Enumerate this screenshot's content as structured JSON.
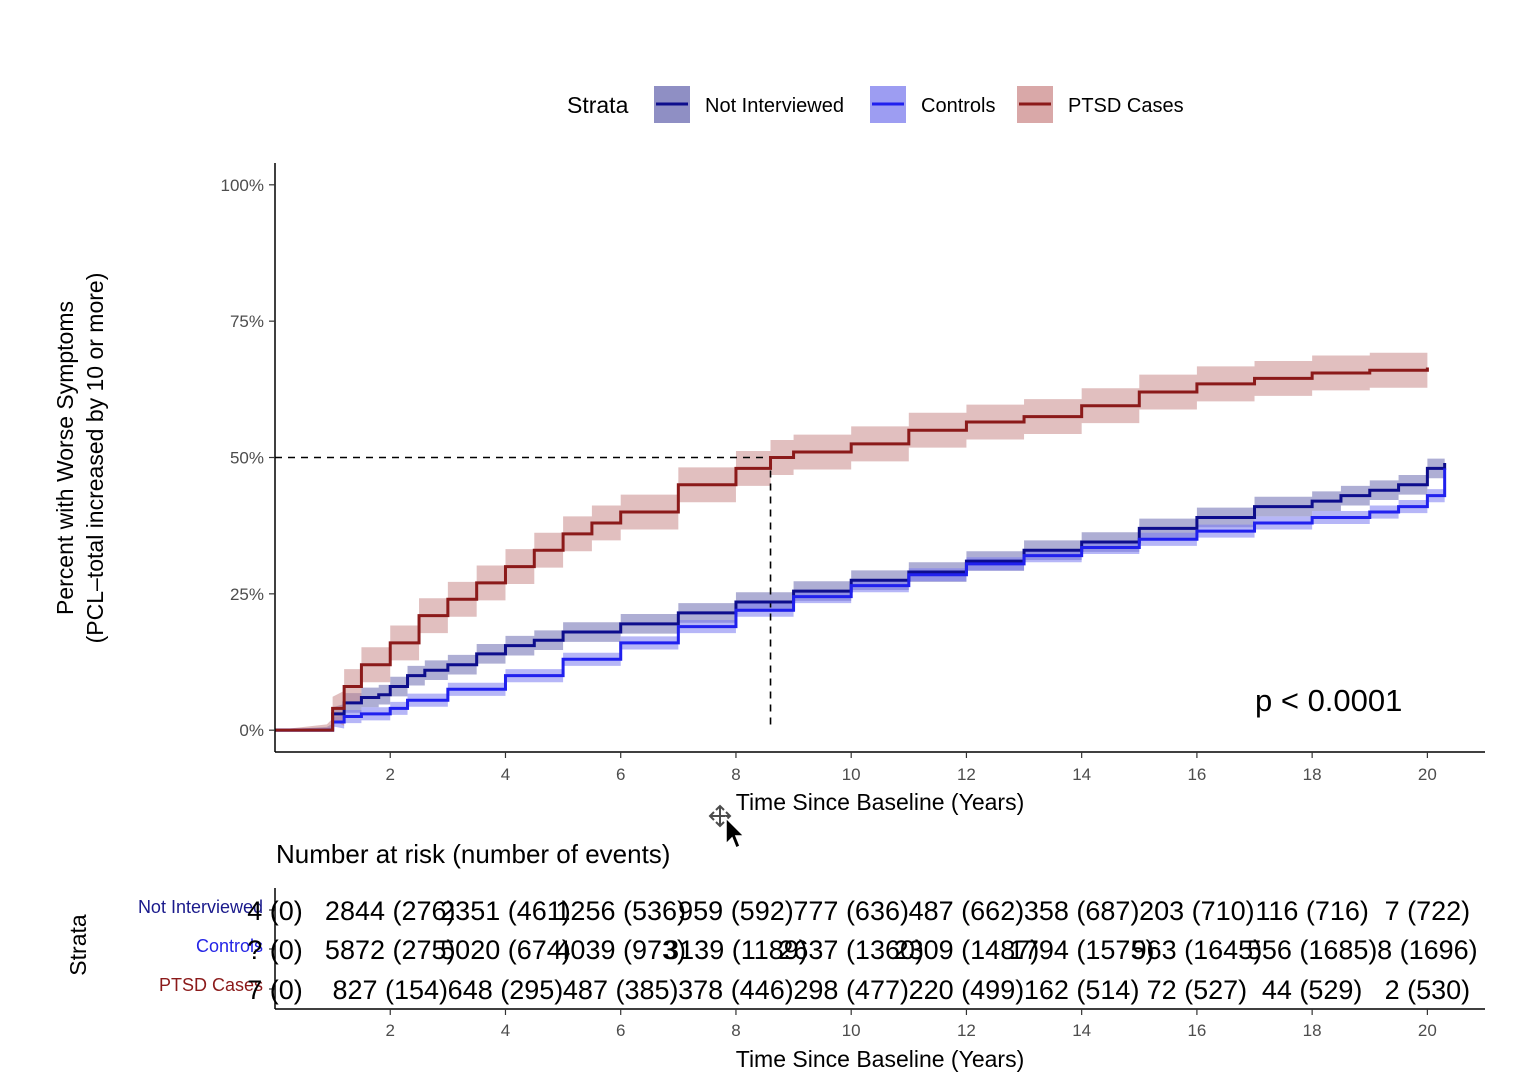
{
  "legend": {
    "title": "Strata",
    "items": [
      {
        "label": "Not Interviewed",
        "color": "#0d0d8c"
      },
      {
        "label": "Controls",
        "color": "#2020ee"
      },
      {
        "label": "PTSD Cases",
        "color": "#8b1a1a"
      }
    ]
  },
  "pvalue_text": "p < 0.0001",
  "risk_table": {
    "title": "Number at risk (number of events)",
    "ylabel": "Strata",
    "xlabel": "Time Since Baseline (Years)",
    "rows": [
      {
        "label": "Not Interviewed",
        "color": "#1a1a8c",
        "cells": [
          "4 (0)",
          "2844 (276)",
          "2351 (461)",
          "1256 (536)",
          "959 (592)",
          "777 (636)",
          "487 (662)",
          "358 (687)",
          "203 (710)",
          "116 (716)",
          "7 (722)"
        ]
      },
      {
        "label": "Controls",
        "color": "#2424e6",
        "cells": [
          "? (0)",
          "5872 (275)",
          "5020 (674)",
          "4039 (973)",
          "3139 (1189)",
          "2637 (1360)",
          "2309 (1487)",
          "1794 (1575)",
          "963 (1645)",
          "556 (1685)",
          "8 (1696)"
        ]
      },
      {
        "label": "PTSD Cases",
        "color": "#8b1a1a",
        "cells": [
          "7 (0)",
          "827 (154)",
          "648 (295)",
          "487 (385)",
          "378 (446)",
          "298 (477)",
          "220 (499)",
          "162 (514)",
          "72 (527)",
          "44 (529)",
          "2 (530)"
        ]
      }
    ]
  },
  "chart_data": {
    "type": "line",
    "title": "",
    "xlabel": "Time Since Baseline (Years)",
    "ylabel_lines": [
      "Percent with Worse Symptoms",
      "(PCL–total increased by 10 or more)"
    ],
    "xlim": [
      0,
      21
    ],
    "ylim": [
      -0.04,
      1.04
    ],
    "x_ticks": [
      2,
      4,
      6,
      8,
      10,
      12,
      14,
      16,
      18,
      20
    ],
    "x_tick_labels": [
      "2",
      "4",
      "6",
      "8",
      "10",
      "12",
      "14",
      "16",
      "18",
      "20"
    ],
    "y_ticks": [
      0,
      0.25,
      0.5,
      0.75,
      1.0
    ],
    "y_tick_labels": [
      "0%",
      "25%",
      "50%",
      "75%",
      "100%"
    ],
    "median_line": {
      "x": 8.6,
      "y": 0.5
    },
    "grid": false,
    "legend_position": "top",
    "series": [
      {
        "name": "Not Interviewed",
        "color": "#0d0d8c",
        "fill": "#6b6bb0",
        "ci_halfwidth": 0.018,
        "x": [
          0,
          0.9,
          1.0,
          1.2,
          1.5,
          1.8,
          2.0,
          2.3,
          2.6,
          3.0,
          3.5,
          4.0,
          4.5,
          5.0,
          6.0,
          7.0,
          8.0,
          9.0,
          10.0,
          11.0,
          12.0,
          13.0,
          14.0,
          15.0,
          16.0,
          17.0,
          18.0,
          18.5,
          19.0,
          19.5,
          20.0,
          20.3
        ],
        "y": [
          0,
          0,
          0.03,
          0.05,
          0.06,
          0.065,
          0.08,
          0.1,
          0.11,
          0.12,
          0.14,
          0.155,
          0.165,
          0.18,
          0.195,
          0.215,
          0.235,
          0.255,
          0.275,
          0.29,
          0.31,
          0.33,
          0.345,
          0.37,
          0.39,
          0.41,
          0.42,
          0.43,
          0.44,
          0.45,
          0.48,
          0.49
        ]
      },
      {
        "name": "Controls",
        "color": "#2020ee",
        "fill": "#7a7af0",
        "ci_halfwidth": 0.012,
        "x": [
          0,
          0.9,
          1.0,
          1.2,
          1.5,
          2.0,
          2.3,
          3.0,
          4.0,
          5.0,
          6.0,
          7.0,
          8.0,
          9.0,
          10.0,
          11.0,
          12.0,
          13.0,
          14.0,
          15.0,
          16.0,
          17.0,
          18.0,
          19.0,
          19.5,
          20.0,
          20.3
        ],
        "y": [
          0,
          0,
          0.015,
          0.025,
          0.03,
          0.04,
          0.055,
          0.075,
          0.1,
          0.13,
          0.16,
          0.19,
          0.22,
          0.245,
          0.265,
          0.285,
          0.305,
          0.32,
          0.335,
          0.35,
          0.365,
          0.38,
          0.39,
          0.4,
          0.41,
          0.43,
          0.48
        ]
      },
      {
        "name": "PTSD Cases",
        "color": "#8b1a1a",
        "fill": "#c98b8b",
        "ci_halfwidth": 0.032,
        "x": [
          0,
          0.9,
          1.0,
          1.2,
          1.5,
          2.0,
          2.5,
          3.0,
          3.5,
          4.0,
          4.5,
          5.0,
          5.5,
          6.0,
          7.0,
          8.0,
          8.6,
          9.0,
          10.0,
          11.0,
          12.0,
          13.0,
          14.0,
          15.0,
          16.0,
          17.0,
          18.0,
          19.0,
          20.0
        ],
        "y": [
          0,
          0,
          0.04,
          0.08,
          0.12,
          0.16,
          0.21,
          0.24,
          0.27,
          0.3,
          0.33,
          0.36,
          0.38,
          0.4,
          0.45,
          0.48,
          0.5,
          0.51,
          0.525,
          0.55,
          0.565,
          0.575,
          0.595,
          0.62,
          0.635,
          0.645,
          0.655,
          0.66,
          0.665
        ]
      }
    ]
  }
}
